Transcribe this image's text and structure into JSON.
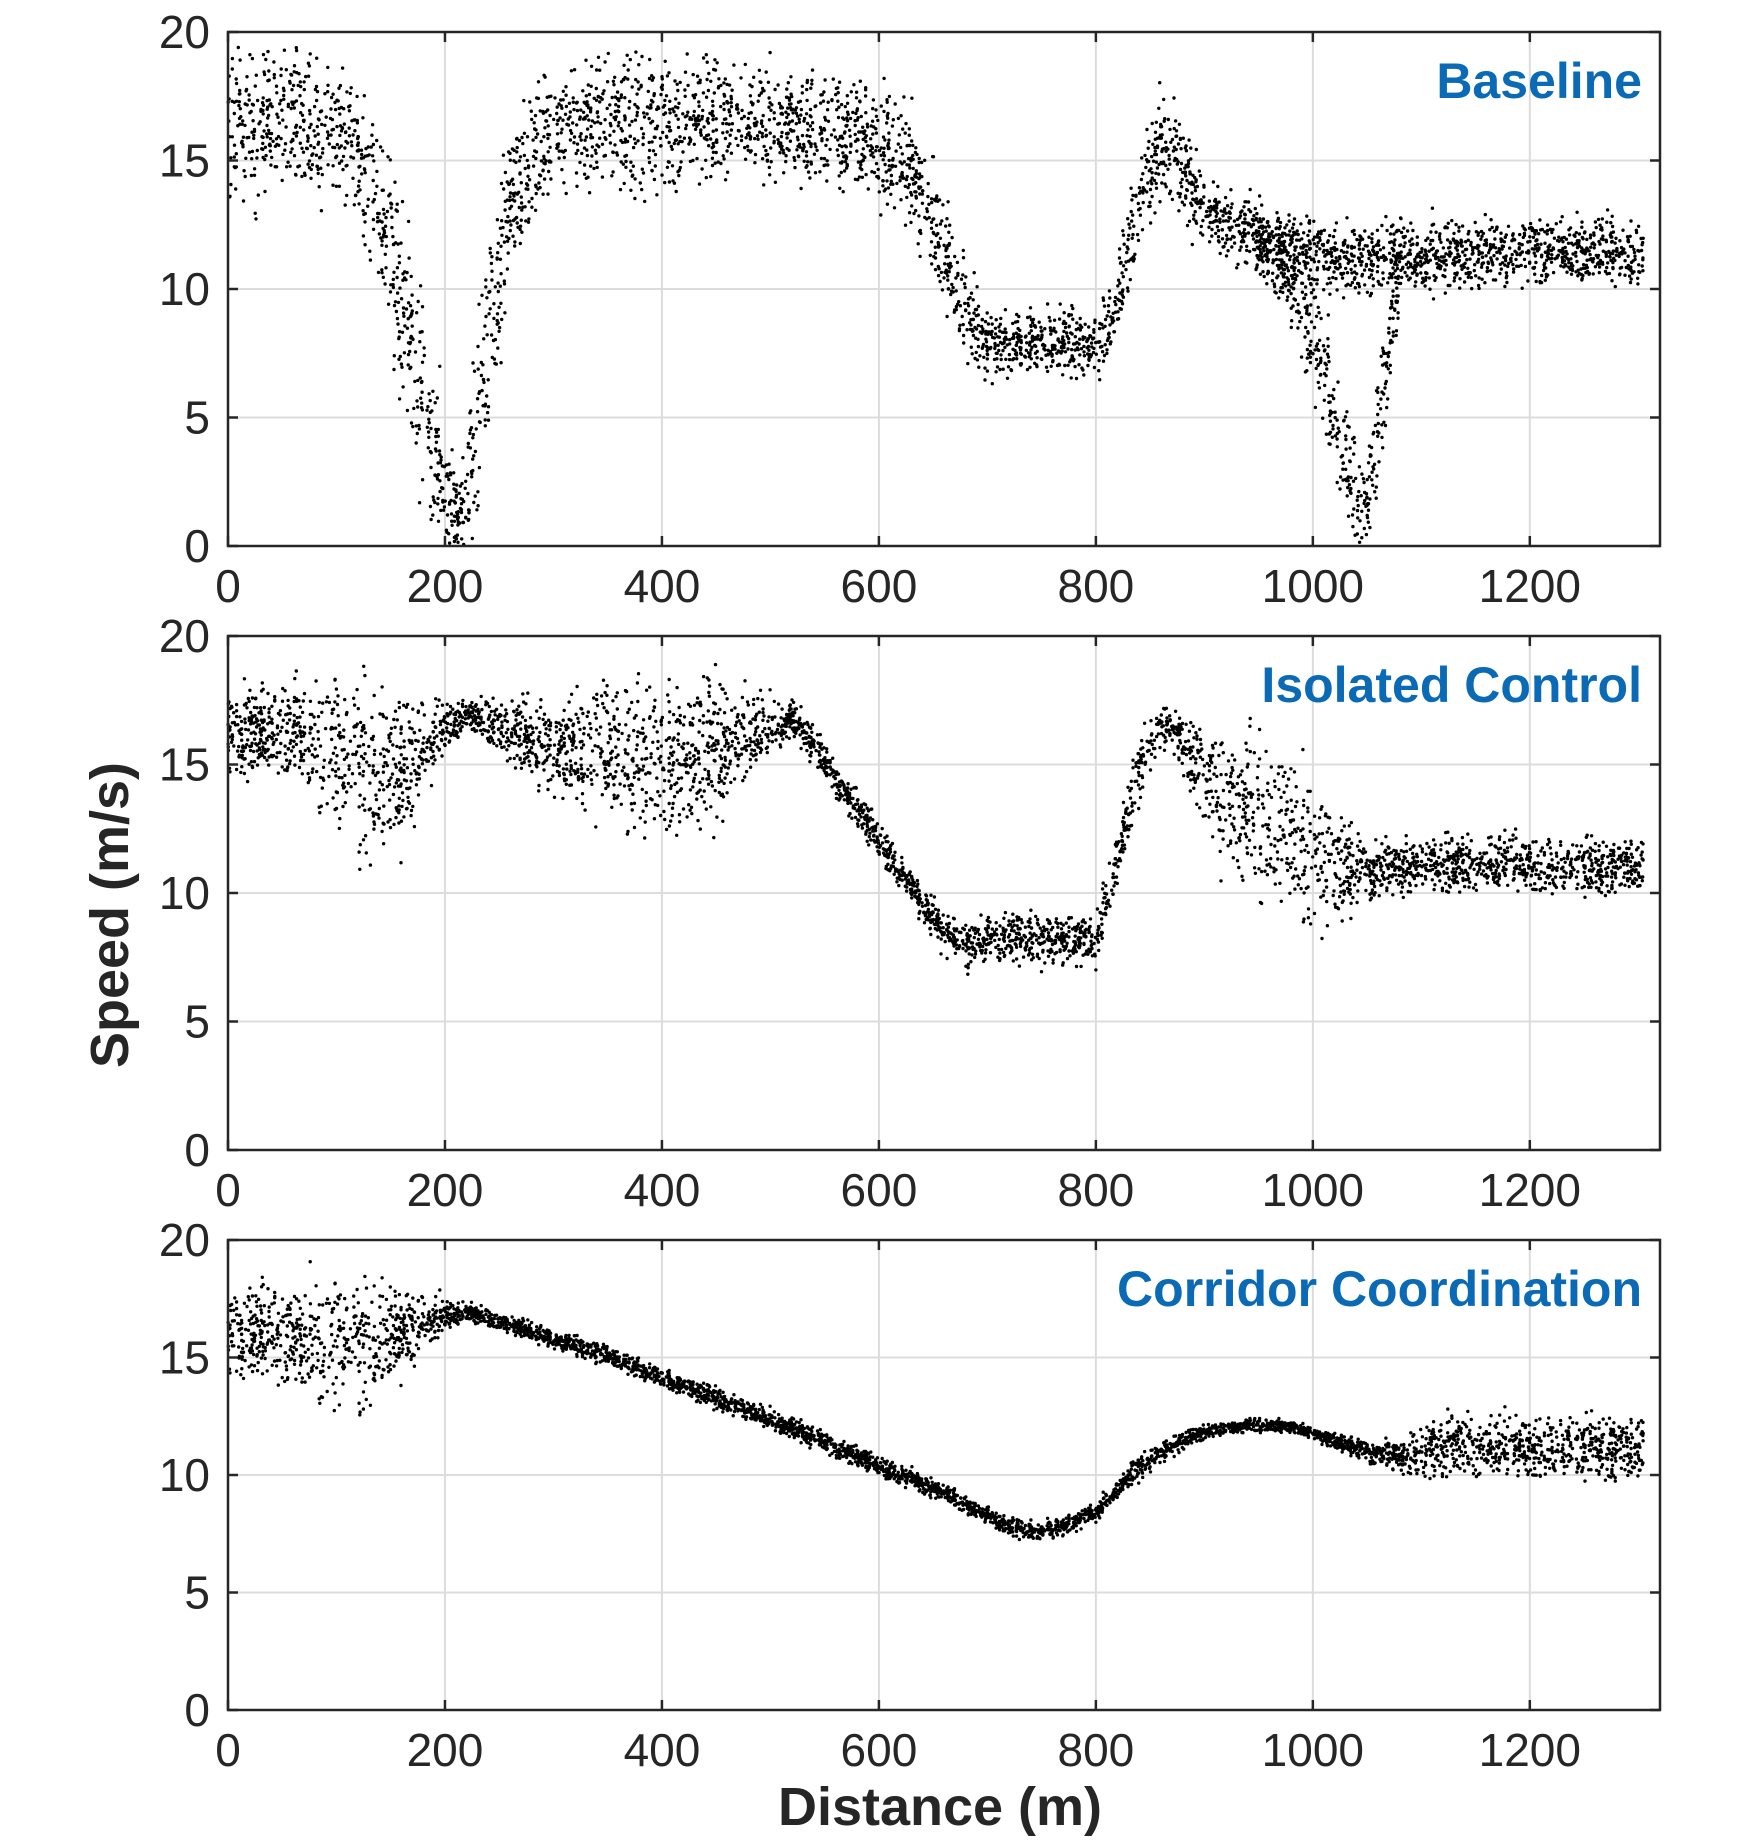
{
  "figure": {
    "ylabel": "Speed (m/s)",
    "xlabel": "Distance (m)",
    "marker_color": "#000000",
    "title_color": "#0b6ab5"
  },
  "chart_data": [
    {
      "type": "scatter",
      "title": "Baseline",
      "xlim": [
        0,
        1320
      ],
      "ylim": [
        0,
        20
      ],
      "xticks": [
        "0",
        "200",
        "400",
        "600",
        "800",
        "1000",
        "1200"
      ],
      "yticks": [
        "0",
        "5",
        "10",
        "15",
        "20"
      ],
      "grid": true,
      "series": [
        {
          "x": [
            0,
            15,
            30,
            45,
            60,
            75,
            90,
            105,
            120,
            140,
            160,
            180,
            200,
            215,
            230,
            245,
            260,
            280,
            300,
            320,
            340,
            360,
            380,
            400,
            420,
            440,
            460,
            480,
            500,
            520,
            540,
            560,
            580,
            600,
            620,
            640,
            660,
            680,
            700,
            720,
            740,
            760,
            780,
            800,
            815,
            830,
            845,
            860,
            875,
            890,
            910,
            930,
            950,
            970,
            990,
            1010,
            1030,
            1050,
            1070,
            1090,
            1110,
            1130,
            1150,
            1170,
            1190,
            1210,
            1230,
            1250,
            1270,
            1290,
            1305
          ],
          "y": [
            16.5,
            16.6,
            16.6,
            16.5,
            16.5,
            16.4,
            16.3,
            16.0,
            15.3,
            13.2,
            9.5,
            5.5,
            1.8,
            1.0,
            5.0,
            9.5,
            13.2,
            15.3,
            16.1,
            16.3,
            16.4,
            16.4,
            16.4,
            16.5,
            16.5,
            16.4,
            16.4,
            16.5,
            16.4,
            16.4,
            16.3,
            16.1,
            16.0,
            15.6,
            15.2,
            13.7,
            11.5,
            9.2,
            8.0,
            7.8,
            7.9,
            8.0,
            7.9,
            7.7,
            8.8,
            11.3,
            14.0,
            15.8,
            15.5,
            13.8,
            12.7,
            12.3,
            12.1,
            11.8,
            11.6,
            11.4,
            11.3,
            11.2,
            11.2,
            11.3,
            11.3,
            11.4,
            11.4,
            11.5,
            11.5,
            11.5,
            11.5,
            11.4,
            11.5,
            11.4,
            11.3
          ],
          "spread": [
            2.2,
            2.2,
            2.2,
            2.2,
            2.2,
            2.2,
            2.0,
            1.8,
            1.8,
            2.4,
            3.0,
            3.2,
            2.0,
            1.2,
            3.0,
            3.2,
            2.4,
            2.0,
            1.6,
            1.6,
            1.8,
            2.0,
            2.2,
            2.0,
            1.8,
            1.8,
            1.6,
            1.6,
            1.6,
            1.6,
            1.6,
            1.6,
            1.6,
            1.6,
            1.6,
            1.6,
            1.6,
            1.2,
            1.0,
            0.9,
            0.9,
            0.9,
            0.9,
            0.9,
            1.0,
            1.4,
            1.6,
            1.6,
            1.6,
            1.2,
            1.0,
            1.0,
            1.0,
            1.0,
            1.0,
            1.0,
            1.0,
            1.0,
            1.0,
            1.0,
            1.0,
            1.0,
            1.0,
            1.0,
            1.0,
            1.0,
            1.0,
            1.0,
            1.0,
            1.0,
            1.0
          ]
        },
        {
          "x": [
            945,
            960,
            975,
            990,
            1005,
            1020,
            1035,
            1045,
            1055,
            1065,
            1080
          ],
          "y": [
            12.0,
            11.4,
            10.6,
            9.5,
            7.8,
            5.2,
            2.6,
            1.0,
            2.6,
            6.5,
            10.5
          ],
          "spread": [
            0.9,
            0.9,
            1.2,
            1.4,
            1.8,
            2.0,
            1.8,
            1.0,
            1.8,
            2.0,
            1.0
          ]
        }
      ]
    },
    {
      "type": "scatter",
      "title": "Isolated Control",
      "xlim": [
        0,
        1320
      ],
      "ylim": [
        0,
        20
      ],
      "xticks": [
        "0",
        "200",
        "400",
        "600",
        "800",
        "1000",
        "1200"
      ],
      "yticks": [
        "0",
        "5",
        "10",
        "15",
        "20"
      ],
      "grid": true,
      "series": [
        {
          "x": [
            0,
            20,
            40,
            60,
            80,
            100,
            120,
            140,
            160,
            180,
            200,
            220,
            260,
            300,
            340,
            380,
            420,
            460,
            500,
            520,
            540,
            560,
            580,
            600,
            620,
            640,
            660,
            680,
            700,
            720,
            740,
            760,
            780,
            800,
            815,
            830,
            845,
            860,
            875,
            890,
            910,
            930,
            950,
            970,
            990,
            1010,
            1030,
            1050,
            1070,
            1090,
            1110,
            1130,
            1150,
            1170,
            1190,
            1210,
            1230,
            1250,
            1270,
            1290,
            1305
          ],
          "y": [
            16.3,
            16.3,
            16.3,
            16.2,
            15.8,
            15.3,
            14.8,
            14.4,
            14.6,
            15.5,
            16.4,
            16.9,
            16.3,
            15.7,
            15.4,
            15.2,
            15.3,
            15.8,
            16.5,
            16.8,
            15.8,
            14.5,
            13.3,
            12.1,
            10.8,
            9.6,
            8.4,
            8.0,
            8.2,
            8.2,
            8.2,
            8.2,
            8.2,
            8.2,
            10.5,
            13.2,
            15.5,
            16.6,
            16.4,
            15.0,
            14.0,
            13.5,
            13.0,
            12.5,
            12.0,
            11.6,
            11.2,
            10.9,
            10.9,
            11.0,
            11.1,
            11.1,
            11.2,
            11.2,
            11.1,
            11.1,
            11.1,
            11.0,
            11.0,
            11.0,
            11.0
          ],
          "spread": [
            1.2,
            1.2,
            1.2,
            1.4,
            2.0,
            2.4,
            2.6,
            2.4,
            2.2,
            1.6,
            0.8,
            0.4,
            1.0,
            1.4,
            1.8,
            2.2,
            2.2,
            1.8,
            0.8,
            0.5,
            0.5,
            0.5,
            0.5,
            0.5,
            0.5,
            0.5,
            0.6,
            0.7,
            0.7,
            0.7,
            0.7,
            0.7,
            0.7,
            0.7,
            0.8,
            1.0,
            0.8,
            0.6,
            0.6,
            1.4,
            1.8,
            2.0,
            2.2,
            2.4,
            2.4,
            2.2,
            1.6,
            0.8,
            0.8,
            0.8,
            0.8,
            0.8,
            0.8,
            0.8,
            0.8,
            0.8,
            0.8,
            0.8,
            0.8,
            0.8,
            0.8
          ]
        }
      ]
    },
    {
      "type": "scatter",
      "title": "Corridor Coordination",
      "xlim": [
        0,
        1320
      ],
      "ylim": [
        0,
        20
      ],
      "xticks": [
        "0",
        "200",
        "400",
        "600",
        "800",
        "1000",
        "1200"
      ],
      "yticks": [
        "0",
        "5",
        "10",
        "15",
        "20"
      ],
      "grid": true,
      "series": [
        {
          "x": [
            0,
            20,
            40,
            60,
            80,
            100,
            120,
            140,
            160,
            180,
            200,
            220,
            260,
            300,
            340,
            380,
            420,
            460,
            500,
            540,
            580,
            620,
            660,
            700,
            720,
            740,
            760,
            780,
            800,
            820,
            840,
            860,
            880,
            900,
            920,
            940,
            960,
            980,
            1000,
            1020,
            1040,
            1060,
            1080,
            1100,
            1120,
            1140,
            1160,
            1180,
            1200,
            1220,
            1240,
            1260,
            1280,
            1305
          ],
          "y": [
            16.2,
            16.1,
            16.0,
            15.8,
            15.6,
            15.4,
            15.5,
            15.7,
            16.0,
            16.4,
            16.8,
            16.9,
            16.4,
            15.8,
            15.2,
            14.5,
            13.8,
            13.1,
            12.4,
            11.6,
            10.8,
            10.0,
            9.2,
            8.3,
            7.8,
            7.6,
            7.7,
            8.0,
            8.5,
            9.4,
            10.3,
            11.0,
            11.5,
            11.8,
            12.0,
            12.1,
            12.1,
            12.0,
            11.8,
            11.5,
            11.2,
            10.9,
            10.8,
            11.0,
            11.2,
            11.3,
            11.3,
            11.3,
            11.2,
            11.2,
            11.2,
            11.2,
            11.1,
            11.1
          ],
          "spread": [
            1.4,
            1.4,
            1.6,
            1.8,
            2.0,
            2.2,
            2.0,
            1.8,
            1.4,
            1.0,
            0.5,
            0.3,
            0.3,
            0.3,
            0.3,
            0.3,
            0.3,
            0.3,
            0.3,
            0.3,
            0.3,
            0.3,
            0.3,
            0.3,
            0.3,
            0.3,
            0.3,
            0.3,
            0.3,
            0.3,
            0.4,
            0.3,
            0.3,
            0.25,
            0.2,
            0.2,
            0.2,
            0.2,
            0.2,
            0.3,
            0.3,
            0.4,
            0.5,
            0.9,
            1.0,
            1.0,
            1.0,
            1.0,
            1.0,
            1.0,
            1.0,
            1.0,
            1.0,
            1.0
          ]
        }
      ]
    }
  ]
}
